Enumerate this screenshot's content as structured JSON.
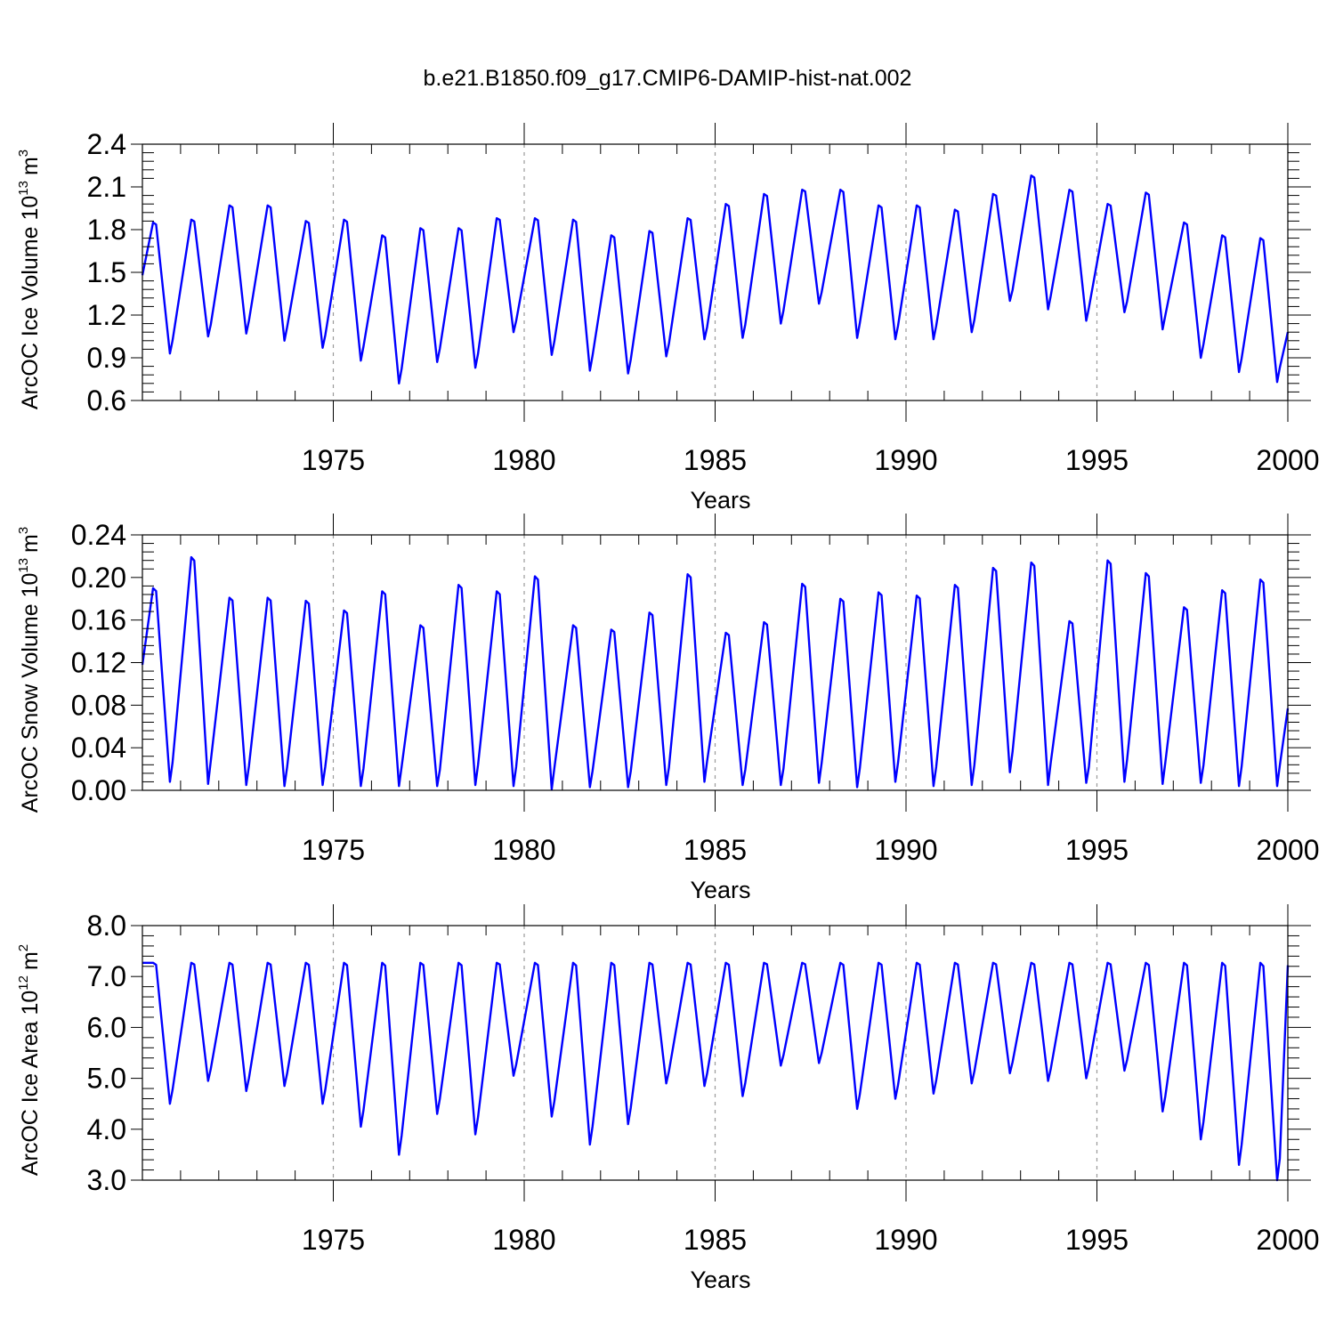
{
  "figure": {
    "title": "b.e21.B1850.f09_g17.CMIP6-DAMIP-hist-nat.002"
  },
  "chart_data": [
    {
      "type": "line",
      "title": "",
      "xlabel": "Years",
      "ylabel_main": "ArcOC Ice Volume 10",
      "ylabel_exp": "13",
      "ylabel_unit": "m",
      "ylabel_unit_exp": "3",
      "xlim": [
        1970,
        2000
      ],
      "ylim": [
        0.6,
        2.4
      ],
      "xticks": [
        1975,
        1980,
        1985,
        1990,
        1995,
        2000
      ],
      "yticks": [
        "0.6",
        "0.9",
        "1.2",
        "1.5",
        "1.8",
        "2.1",
        "2.4"
      ],
      "line_color": "#0000ff",
      "series_start": 1970.0,
      "phase_offset": 0.0,
      "annual_max": [
        1.85,
        1.87,
        1.97,
        1.97,
        1.86,
        1.87,
        1.76,
        1.81,
        1.81,
        1.88,
        1.88,
        1.87,
        1.76,
        1.79,
        1.88,
        1.98,
        2.05,
        2.08,
        2.08,
        1.97,
        1.97,
        1.94,
        2.05,
        2.18,
        2.08,
        1.98,
        2.06,
        1.85,
        1.76,
        1.74
      ],
      "annual_min": [
        0.93,
        1.05,
        1.07,
        1.02,
        0.97,
        0.88,
        0.72,
        0.87,
        0.83,
        1.08,
        0.92,
        0.81,
        0.79,
        0.91,
        1.03,
        1.04,
        1.14,
        1.28,
        1.04,
        1.03,
        1.03,
        1.08,
        1.3,
        1.24,
        1.16,
        1.22,
        1.1,
        0.9,
        0.8,
        0.73
      ],
      "start_value": 1.48,
      "end_value": 1.08
    },
    {
      "type": "line",
      "title": "",
      "xlabel": "Years",
      "ylabel_main": "ArcOC Snow Volume 10",
      "ylabel_exp": "13",
      "ylabel_unit": "m",
      "ylabel_unit_exp": "3",
      "xlim": [
        1970,
        2000
      ],
      "ylim": [
        0.0,
        0.24
      ],
      "xticks": [
        1975,
        1980,
        1985,
        1990,
        1995,
        2000
      ],
      "yticks": [
        "0.00",
        "0.04",
        "0.08",
        "0.12",
        "0.16",
        "0.20",
        "0.24"
      ],
      "line_color": "#0000ff",
      "series_start": 1970.0,
      "phase_offset": 0.0,
      "annual_max": [
        0.19,
        0.219,
        0.181,
        0.181,
        0.178,
        0.169,
        0.187,
        0.155,
        0.193,
        0.187,
        0.201,
        0.155,
        0.151,
        0.167,
        0.203,
        0.148,
        0.158,
        0.194,
        0.18,
        0.186,
        0.183,
        0.193,
        0.209,
        0.214,
        0.159,
        0.216,
        0.204,
        0.172,
        0.188,
        0.198
      ],
      "annual_min": [
        0.008,
        0.006,
        0.005,
        0.004,
        0.005,
        0.004,
        0.004,
        0.004,
        0.005,
        0.004,
        0.001,
        0.003,
        0.003,
        0.005,
        0.008,
        0.005,
        0.005,
        0.007,
        0.003,
        0.008,
        0.004,
        0.005,
        0.017,
        0.005,
        0.007,
        0.008,
        0.006,
        0.007,
        0.004,
        0.004
      ],
      "start_value": 0.118,
      "end_value": 0.077
    },
    {
      "type": "line",
      "title": "",
      "xlabel": "Years",
      "ylabel_main": "ArcOC Ice Area 10",
      "ylabel_exp": "12",
      "ylabel_unit": "m",
      "ylabel_unit_exp": "2",
      "xlim": [
        1970,
        2000
      ],
      "ylim": [
        3.0,
        8.0
      ],
      "xticks": [
        1975,
        1980,
        1985,
        1990,
        1995,
        2000
      ],
      "yticks": [
        "3.0",
        "4.0",
        "5.0",
        "6.0",
        "7.0",
        "8.0"
      ],
      "line_color": "#0000ff",
      "series_start": 1970.0,
      "phase_offset": 0.0,
      "annual_max": [
        7.27,
        7.27,
        7.27,
        7.27,
        7.27,
        7.27,
        7.27,
        7.27,
        7.27,
        7.27,
        7.27,
        7.27,
        7.27,
        7.27,
        7.27,
        7.27,
        7.27,
        7.27,
        7.27,
        7.27,
        7.27,
        7.27,
        7.27,
        7.27,
        7.27,
        7.27,
        7.27,
        7.27,
        7.27,
        7.27
      ],
      "annual_min": [
        4.5,
        4.95,
        4.75,
        4.85,
        4.5,
        4.05,
        3.5,
        4.3,
        3.9,
        5.05,
        4.25,
        3.7,
        4.1,
        4.9,
        4.85,
        4.65,
        5.25,
        5.3,
        4.4,
        4.6,
        4.7,
        4.9,
        5.1,
        4.95,
        5.0,
        5.15,
        4.35,
        3.8,
        3.3,
        3.0
      ],
      "start_value": 7.27,
      "end_value": 7.22
    }
  ]
}
